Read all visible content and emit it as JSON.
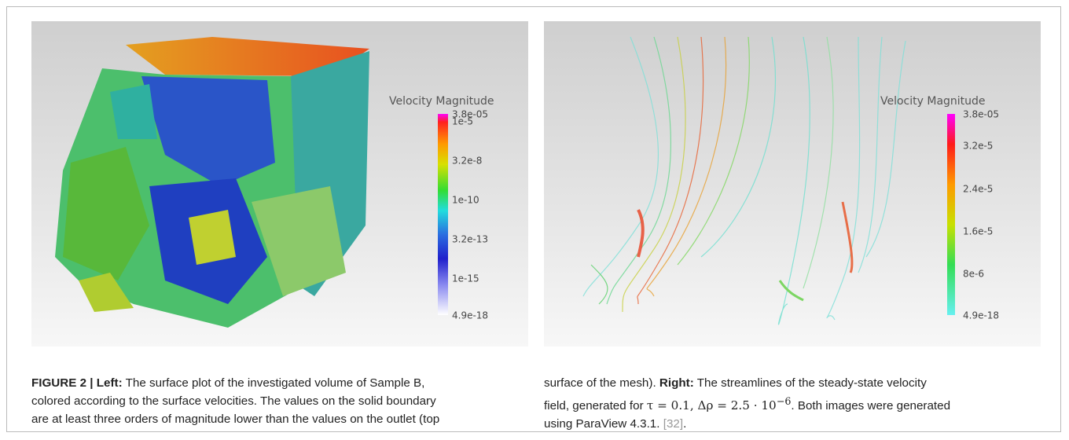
{
  "left_panel": {
    "colorbar": {
      "title": "Velocity Magnitude",
      "labels": [
        "3.8e-05",
        "1e-5",
        "3.2e-8",
        "1e-10",
        "3.2e-13",
        "1e-15",
        "4.9e-18"
      ]
    }
  },
  "right_panel": {
    "colorbar": {
      "title": "Velocity Magnitude",
      "labels": [
        "3.8e-05",
        "3.2e-5",
        "2.4e-5",
        "1.6e-5",
        "8e-6",
        "4.9e-18"
      ]
    }
  },
  "caption": {
    "figure_label": "FIGURE 2 | Left:",
    "left_lines": [
      "The surface plot of the investigated volume of Sample B,",
      "colored according to the surface velocities. The values on the solid boundary",
      "are at least three orders of magnitude lower than the values on the outlet (top"
    ],
    "right_line_1_start": "surface of the mesh).",
    "right_label": "Right:",
    "right_line_1_end": "The streamlines of the steady-state velocity",
    "right_line_2_start": "field, generated for",
    "math": "τ = 0.1, Δρ = 2.5 · 10",
    "math_exponent": "−6",
    "right_line_2_end": ". Both images were generated",
    "right_line_3_start": "using ParaView 4.3.1.",
    "reference": "[32]",
    "right_line_3_end": "."
  }
}
